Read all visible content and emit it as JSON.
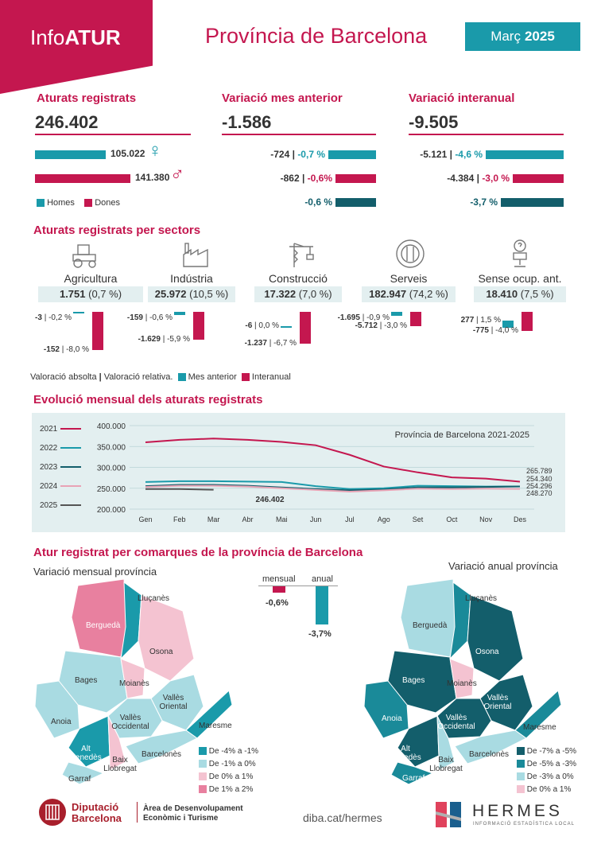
{
  "header": {
    "brand_prefix": "Info",
    "brand_bold": "ATUR",
    "province": "Província de Barcelona",
    "month": "Març",
    "year": "2025"
  },
  "kpis": {
    "registered": {
      "title": "Aturats registrats",
      "value": "246.402",
      "men": "105.022",
      "women": "141.380",
      "men_share": 0.426,
      "women_share": 0.574,
      "legend_men": "Homes",
      "legend_women": "Dones"
    },
    "monthly": {
      "title": "Variació mes anterior",
      "value": "-1.586",
      "rows": [
        {
          "abs": "-724",
          "pct": "-0,7 %",
          "pct_value": -0.7
        },
        {
          "abs": "-862",
          "pct": "-0,6%",
          "pct_value": -0.6
        },
        {
          "abs": "",
          "pct": "-0,6 %",
          "pct_value": -0.6
        }
      ]
    },
    "annual": {
      "title": "Variació interanual",
      "value": "-9.505",
      "rows": [
        {
          "abs": "-5.121",
          "pct": "-4,6 %",
          "pct_value": -4.6
        },
        {
          "abs": "-4.384",
          "pct": "-3,0 %",
          "pct_value": -3.0
        },
        {
          "abs": "",
          "pct": "-3,7 %",
          "pct_value": -3.7
        }
      ]
    }
  },
  "sectors": {
    "title": "Aturats registrats per sectors",
    "items": [
      {
        "name": "Agricultura",
        "value": "1.751",
        "share": "(0,7 %)",
        "m_abs": "-3",
        "m_pct": "-0,2 %",
        "a_abs": "-152",
        "a_pct": "-8,0 %",
        "m_pct_value": -0.2,
        "a_pct_value": -8.0
      },
      {
        "name": "Indústria",
        "value": "25.972",
        "share": "(10,5 %)",
        "m_abs": "-159",
        "m_pct": "-0,6 %",
        "a_abs": "-1.629",
        "a_pct": "-5,9 %",
        "m_pct_value": -0.6,
        "a_pct_value": -5.9
      },
      {
        "name": "Construcció",
        "value": "17.322",
        "share": "(7,0 %)",
        "m_abs": "-6",
        "m_pct": "0,0 %",
        "a_abs": "-1.237",
        "a_pct": "-6,7 %",
        "m_pct_value": 0.0,
        "a_pct_value": -6.7
      },
      {
        "name": "Serveis",
        "value": "182.947",
        "share": "(74,2 %)",
        "m_abs": "-1.695",
        "m_pct": "-0,9 %",
        "a_abs": "-5.712",
        "a_pct": "-3,0 %",
        "m_pct_value": -0.9,
        "a_pct_value": -3.0
      },
      {
        "name": "Sense ocup. ant.",
        "value": "18.410",
        "share": "(7,5 %)",
        "m_abs": "277",
        "m_pct": "1,5 %",
        "a_abs": "-775",
        "a_pct": "-4,0 %",
        "m_pct_value": 1.5,
        "a_pct_value": -4.0
      }
    ],
    "legend": {
      "absrel": "Valoració absolta",
      "rel": "Valoració relativa.",
      "monthly": "Mes anterior",
      "annual": "Interanual"
    }
  },
  "evolution": {
    "title": "Evolució mensual dels aturats registrats"
  },
  "chart_data": {
    "type": "line",
    "title": "Província de Barcelona 2021-2025",
    "categories": [
      "Gen",
      "Feb",
      "Mar",
      "Abr",
      "Mai",
      "Jun",
      "Jul",
      "Ago",
      "Set",
      "Oct",
      "Nov",
      "Des"
    ],
    "ylim": [
      200000,
      400000
    ],
    "yticks": [
      "400.000",
      "350.000",
      "300.000",
      "250.000",
      "200.000"
    ],
    "series": [
      {
        "name": "2021",
        "color": "#c4174f",
        "values": [
          360000,
          366000,
          369000,
          366000,
          361000,
          353000,
          330000,
          302000,
          288000,
          276000,
          273000,
          265789
        ]
      },
      {
        "name": "2022",
        "color": "#1a9aaa",
        "values": [
          265000,
          267000,
          267000,
          266000,
          265000,
          255000,
          248000,
          250000,
          256000,
          255000,
          254000,
          254340
        ]
      },
      {
        "name": "2023",
        "color": "#135e6b",
        "values": [
          255000,
          258000,
          258000,
          256000,
          252000,
          248000,
          245000,
          247000,
          252000,
          252000,
          253000,
          254296
        ]
      },
      {
        "name": "2024",
        "color": "#e8a3b5",
        "values": [
          253000,
          256000,
          256000,
          254000,
          250000,
          246000,
          242000,
          245000,
          249000,
          248000,
          249000,
          248270
        ]
      },
      {
        "name": "2025",
        "color": "#555555",
        "values": [
          248000,
          248000,
          246402,
          null,
          null,
          null,
          null,
          null,
          null,
          null,
          null,
          null
        ]
      }
    ],
    "end_labels": [
      "265.789",
      "254.340",
      "254.296",
      "248.270"
    ],
    "point_label": "246.402"
  },
  "comarques": {
    "title": "Atur registrat per comarques de la província de Barcelona",
    "monthly_subtitle": "Variació mensual província",
    "annual_subtitle": "Variació anual província",
    "mini": {
      "mensual_label": "mensual",
      "anual_label": "anual",
      "mensual_value": "-0,6%",
      "anual_value": "-3,7%",
      "mensual_pct": -0.6,
      "anual_pct": -3.7
    },
    "names": [
      "Lluçanès",
      "Berguedà",
      "Osona",
      "Bages",
      "Moianès",
      "Vallès Oriental",
      "Anoia",
      "Vallès Occidental",
      "Maresme",
      "Alt Penedès",
      "Baix Llobregat",
      "Barcelonès",
      "Garraf"
    ],
    "monthly_legend": [
      {
        "label": "De -4% a -1%",
        "color": "#1a9aaa"
      },
      {
        "label": "De -1% a 0%",
        "color": "#a9dbe2"
      },
      {
        "label": "De 0% a 1%",
        "color": "#f4c3d1"
      },
      {
        "label": "De 1% a 2%",
        "color": "#e8809f"
      }
    ],
    "annual_legend": [
      {
        "label": "De -7% a -5%",
        "color": "#135e6b"
      },
      {
        "label": "De -5% a -3%",
        "color": "#1a8a99"
      },
      {
        "label": "De -3% a 0%",
        "color": "#a9dbe2"
      },
      {
        "label": "De 0% a 1%",
        "color": "#f4c3d1"
      }
    ]
  },
  "footer": {
    "org1": "Diputació",
    "org2": "Barcelona",
    "area1": "Àrea de Desenvolupament",
    "area2": "Econòmic i Turisme",
    "url": "diba.cat/hermes",
    "hermes": "HERMES",
    "hermes_sub": "INFORMACIÓ ESTADÍSTICA LOCAL"
  }
}
